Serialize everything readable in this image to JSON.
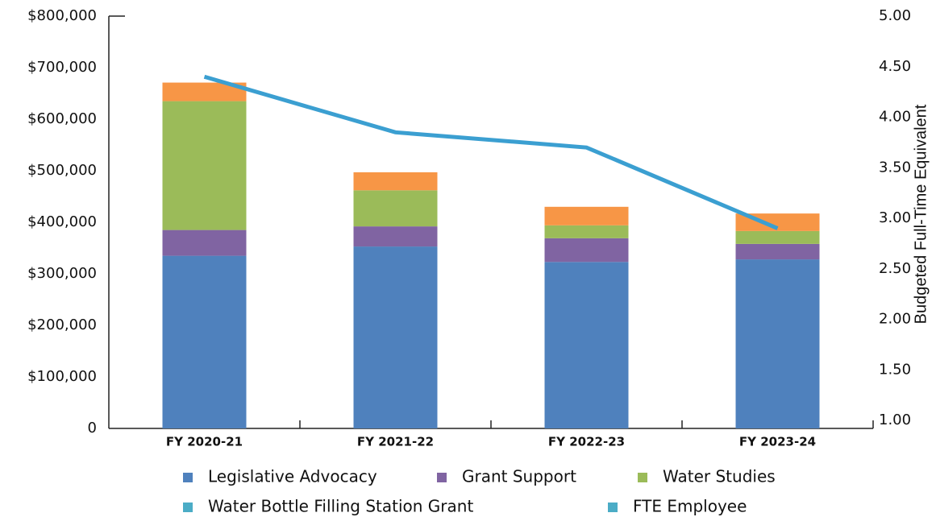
{
  "chart_data": {
    "type": "bar",
    "stacked": true,
    "categories": [
      "FY 2020-21",
      "FY 2021-22",
      "FY 2022-23",
      "FY 2023-24"
    ],
    "series": [
      {
        "name": "Legislative Advocacy",
        "color": "#4f81bd",
        "values": [
          335000,
          353000,
          323000,
          328000
        ]
      },
      {
        "name": "Grant Support",
        "color": "#8064a2",
        "values": [
          50000,
          39000,
          46000,
          30000
        ]
      },
      {
        "name": "Water Studies",
        "color": "#9bbb59",
        "values": [
          250000,
          70000,
          25000,
          25000
        ]
      },
      {
        "name": "Water Bottle Filling Station Grant",
        "color": "#f79646",
        "legend_color": "#4bacc6",
        "values": [
          36000,
          35000,
          36000,
          34000
        ]
      },
      {
        "name": "FTE Employee",
        "color": "#3b9fd1",
        "legend_color": "#4bacc6",
        "axis": "y2",
        "type": "line",
        "values": [
          4.4,
          3.85,
          3.7,
          2.9
        ]
      }
    ],
    "ylim": [
      0,
      800000
    ],
    "yticks": [
      0,
      {
        "value": 100000,
        "label": "$100,000"
      },
      {
        "value": 200000,
        "label": "$200,000"
      },
      {
        "value": 300000,
        "label": "$300,000"
      },
      {
        "value": 400000,
        "label": "$400,000"
      },
      {
        "value": 500000,
        "label": "$500,000"
      },
      {
        "value": 600000,
        "label": "$600,000"
      },
      {
        "value": 700000,
        "label": "$700,000"
      },
      {
        "value": 800000,
        "label": "$800,000"
      }
    ],
    "y2label": "Budgeted Full-Time Equivalent",
    "y2lim": [
      1,
      5
    ],
    "y2ticks": [
      {
        "value": 1,
        "label": "1.00"
      },
      {
        "value": 1.5,
        "label": "1.50"
      },
      {
        "value": 2,
        "label": "2.00"
      },
      {
        "value": 2.5,
        "label": "2.50"
      },
      {
        "value": 3,
        "label": "3.00"
      },
      {
        "value": 3.5,
        "label": "3.50"
      },
      {
        "value": 4,
        "label": "4.00"
      },
      {
        "value": 4.5,
        "label": "4.50"
      },
      {
        "value": 5,
        "label": "5.00"
      }
    ],
    "grid": false,
    "legend": "bottom"
  }
}
